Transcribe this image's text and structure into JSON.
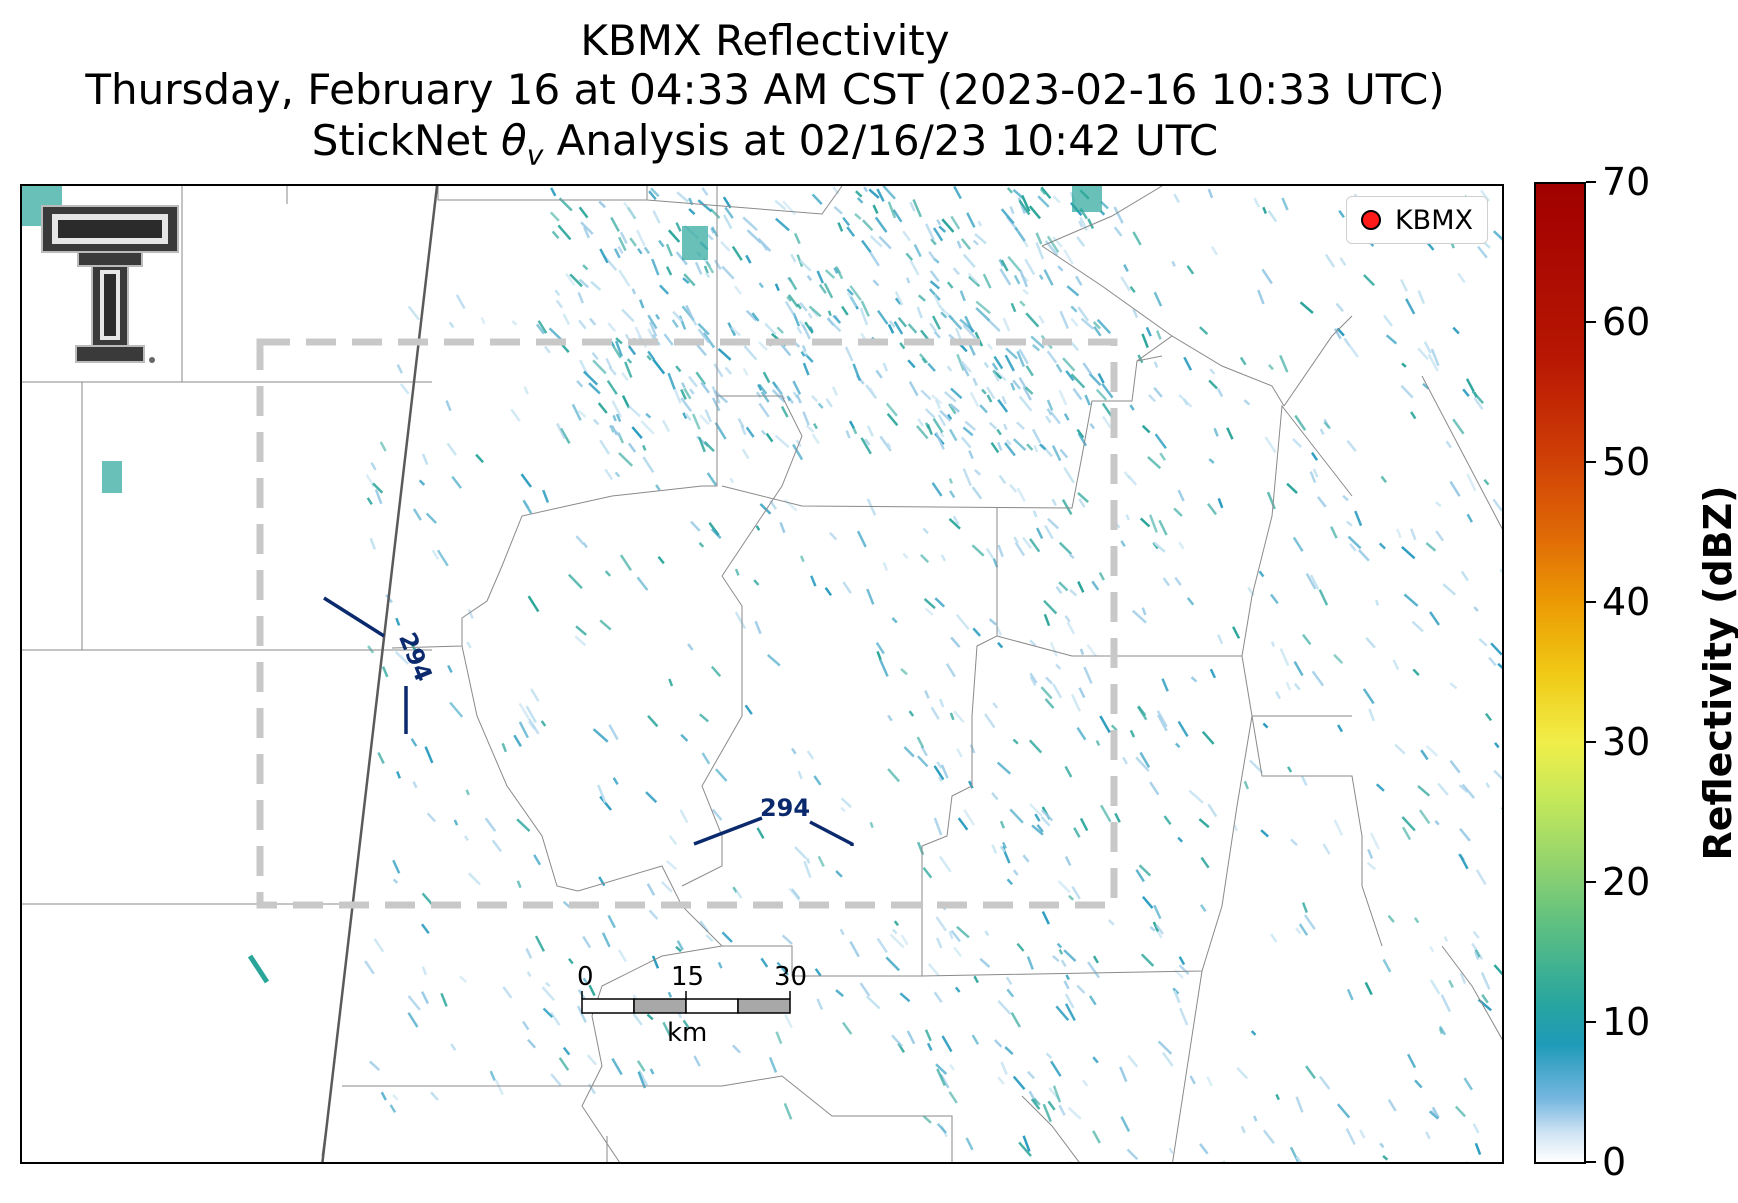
{
  "titles": {
    "line1": "KBMX Reflectivity",
    "line2": "Thursday, February 16 at 04:33 AM CST (2023-02-16 10:33 UTC)",
    "line3_prefix": "StickNet ",
    "line3_theta": "θ",
    "line3_sub": "v",
    "line3_suffix": " Analysis at 02/16/23 10:42 UTC"
  },
  "legend": {
    "label": "KBMX",
    "marker_color": "#ff1a1a"
  },
  "colorbar": {
    "label": "Reflectivity (dBZ)",
    "min": 0,
    "max": 70,
    "ticks": [
      "0",
      "10",
      "20",
      "30",
      "40",
      "50",
      "60",
      "70"
    ]
  },
  "contours": [
    {
      "label": "294"
    },
    {
      "label": "294"
    }
  ],
  "scalebar": {
    "ticks": [
      "0",
      "15",
      "30"
    ],
    "unit": "km"
  },
  "logo": {
    "name": "texas-tech-double-t-logo"
  },
  "colors": {
    "contour": "#0b2a6e",
    "county_lines": "#888888",
    "analysis_box": "#c8c8c8",
    "echo_light": "#9ccbe6",
    "echo_mid": "#2b9cbf",
    "echo_teal": "#2aa59a"
  }
}
